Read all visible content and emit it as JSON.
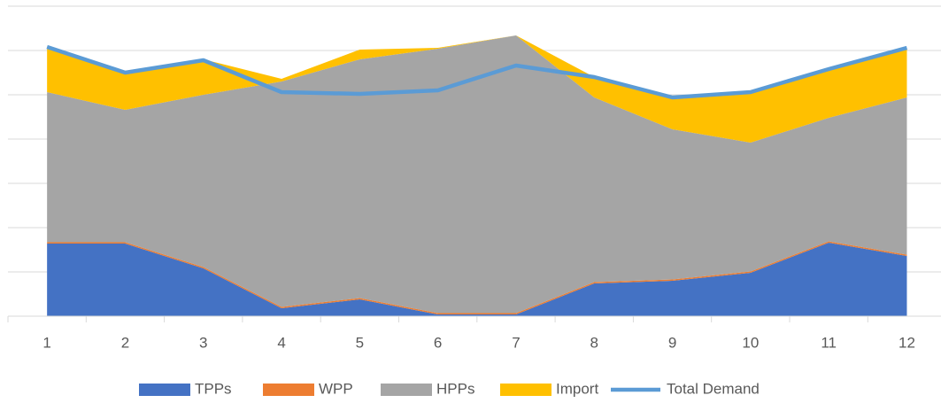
{
  "chart_data": {
    "type": "area",
    "stacked": true,
    "categories": [
      "1",
      "2",
      "3",
      "4",
      "5",
      "6",
      "7",
      "8",
      "9",
      "10",
      "11",
      "12"
    ],
    "series": [
      {
        "name": "TPPs",
        "color": "#4472c4",
        "type": "area",
        "values": [
          1.64,
          1.64,
          1.08,
          0.18,
          0.38,
          0.04,
          0.04,
          0.74,
          0.8,
          0.98,
          1.66,
          1.36
        ]
      },
      {
        "name": "WPP",
        "color": "#ed7d31",
        "type": "area",
        "values": [
          0.03,
          0.03,
          0.03,
          0.03,
          0.03,
          0.03,
          0.03,
          0.03,
          0.03,
          0.03,
          0.03,
          0.03
        ]
      },
      {
        "name": "HPPs",
        "color": "#a5a5a5",
        "type": "area",
        "values": [
          3.39,
          2.99,
          3.89,
          5.09,
          5.39,
          5.97,
          6.27,
          4.17,
          3.39,
          2.91,
          2.79,
          3.55
        ]
      },
      {
        "name": "Import",
        "color": "#ffc000",
        "type": "area",
        "values": [
          0.98,
          0.84,
          0.8,
          0.06,
          0.22,
          0.02,
          0,
          0.46,
          0.68,
          1.1,
          1.1,
          1.1
        ]
      },
      {
        "name": "Total Demand",
        "color": "#5b9bd5",
        "type": "line",
        "values": [
          6.08,
          5.5,
          5.78,
          5.06,
          5.02,
          5.1,
          5.66,
          5.4,
          4.94,
          5.06,
          5.58,
          6.06
        ]
      }
    ],
    "ylim": [
      0,
      7
    ],
    "yticks": [
      0,
      1,
      2,
      3,
      4,
      5,
      6,
      7
    ],
    "ytick_labels": false,
    "grid": true,
    "legend": "bottom"
  }
}
